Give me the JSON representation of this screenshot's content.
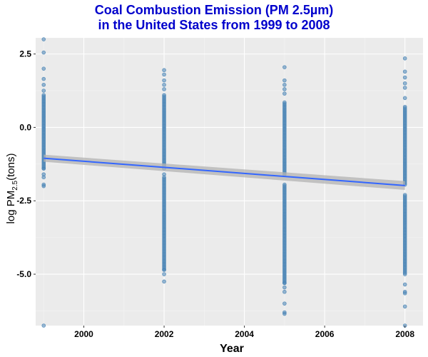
{
  "colors": {
    "title": "#0000cc",
    "panel": "#ebebeb",
    "grid_major": "#ffffff",
    "point": "#4682b4",
    "fit_line": "#3366ff",
    "confidence_band": "#b3b3b3"
  },
  "chart_data": {
    "type": "scatter",
    "title_line1": "Coal Combustion Emission (PM 2.5µm)",
    "title_line2": "in the United States from 1999 to 2008",
    "xlabel": "Year",
    "ylabel_prefix": "log PM",
    "ylabel_subscript": "2.5",
    "ylabel_suffix": "(tons)",
    "xlim": [
      1998.8,
      2008.45
    ],
    "ylim": [
      -6.75,
      3.05
    ],
    "x_ticks": [
      2000,
      2002,
      2004,
      2006,
      2008
    ],
    "x_tick_labels": [
      "2000",
      "2002",
      "2004",
      "2006",
      "2008"
    ],
    "y_ticks": [
      2.5,
      0,
      -2.5,
      -5
    ],
    "y_tick_labels": [
      "2.5",
      "0.0",
      "-2.5",
      "-5.0"
    ],
    "grid": true,
    "legend": "none",
    "series": [
      {
        "x": 1999,
        "outliers": [
          3.0,
          2.55,
          2.0,
          1.65,
          1.45,
          1.25,
          -1.4,
          -1.6,
          -1.7,
          -1.95,
          -2.0,
          -6.75
        ],
        "dense_ranges": [
          [
            -1.4,
            1.1
          ]
        ]
      },
      {
        "x": 2002,
        "outliers": [
          1.95,
          1.8,
          1.6,
          1.45,
          1.3,
          1.1,
          -1.4,
          -1.6,
          -1.7,
          -4.85,
          -5.0,
          -5.25
        ],
        "dense_ranges": [
          [
            -1.3,
            1.05
          ],
          [
            -1.75,
            -4.85
          ]
        ]
      },
      {
        "x": 2005,
        "outliers": [
          2.05,
          1.6,
          1.45,
          1.3,
          1.15,
          -5.3,
          -5.45,
          -5.6,
          -6.0,
          -6.3,
          -6.35
        ],
        "dense_ranges": [
          [
            -1.6,
            0.85
          ],
          [
            -1.95,
            -5.3
          ]
        ]
      },
      {
        "x": 2008,
        "outliers": [
          2.35,
          1.9,
          1.7,
          1.5,
          1.35,
          1.0,
          -5.35,
          -5.6,
          -5.65,
          -6.1,
          -6.75
        ],
        "dense_ranges": [
          [
            -1.95,
            0.7
          ],
          [
            -2.3,
            -5.0
          ]
        ]
      }
    ],
    "fit": {
      "method": "linear",
      "x": [
        1999,
        2008
      ],
      "y": [
        -1.05,
        -1.98
      ],
      "ci_halfwidth": [
        0.12,
        0.15
      ]
    }
  }
}
